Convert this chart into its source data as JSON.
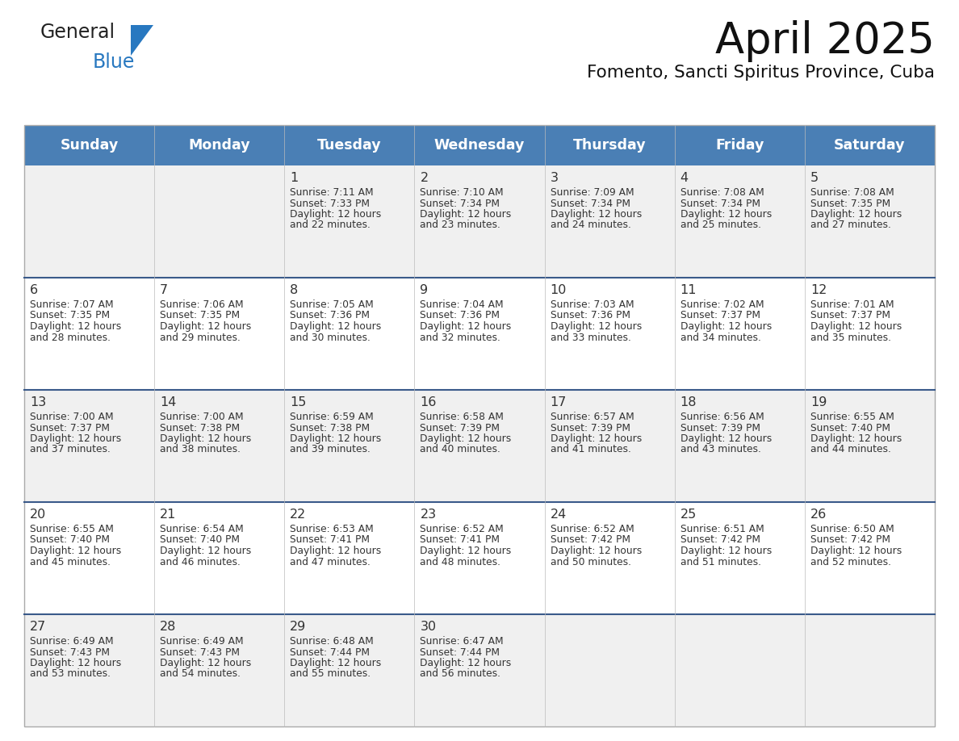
{
  "title": "April 2025",
  "subtitle": "Fomento, Sancti Spiritus Province, Cuba",
  "header_color": "#4a7fb5",
  "header_text_color": "#ffffff",
  "cell_bg_even": "#f0f0f0",
  "cell_bg_odd": "#ffffff",
  "row_divider_color": "#3a5a8a",
  "day_headers": [
    "Sunday",
    "Monday",
    "Tuesday",
    "Wednesday",
    "Thursday",
    "Friday",
    "Saturday"
  ],
  "days": [
    {
      "date": 1,
      "col": 2,
      "row": 0,
      "sunrise": "7:11 AM",
      "sunset": "7:33 PM",
      "daylight_minutes": "22"
    },
    {
      "date": 2,
      "col": 3,
      "row": 0,
      "sunrise": "7:10 AM",
      "sunset": "7:34 PM",
      "daylight_minutes": "23"
    },
    {
      "date": 3,
      "col": 4,
      "row": 0,
      "sunrise": "7:09 AM",
      "sunset": "7:34 PM",
      "daylight_minutes": "24"
    },
    {
      "date": 4,
      "col": 5,
      "row": 0,
      "sunrise": "7:08 AM",
      "sunset": "7:34 PM",
      "daylight_minutes": "25"
    },
    {
      "date": 5,
      "col": 6,
      "row": 0,
      "sunrise": "7:08 AM",
      "sunset": "7:35 PM",
      "daylight_minutes": "27"
    },
    {
      "date": 6,
      "col": 0,
      "row": 1,
      "sunrise": "7:07 AM",
      "sunset": "7:35 PM",
      "daylight_minutes": "28"
    },
    {
      "date": 7,
      "col": 1,
      "row": 1,
      "sunrise": "7:06 AM",
      "sunset": "7:35 PM",
      "daylight_minutes": "29"
    },
    {
      "date": 8,
      "col": 2,
      "row": 1,
      "sunrise": "7:05 AM",
      "sunset": "7:36 PM",
      "daylight_minutes": "30"
    },
    {
      "date": 9,
      "col": 3,
      "row": 1,
      "sunrise": "7:04 AM",
      "sunset": "7:36 PM",
      "daylight_minutes": "32"
    },
    {
      "date": 10,
      "col": 4,
      "row": 1,
      "sunrise": "7:03 AM",
      "sunset": "7:36 PM",
      "daylight_minutes": "33"
    },
    {
      "date": 11,
      "col": 5,
      "row": 1,
      "sunrise": "7:02 AM",
      "sunset": "7:37 PM",
      "daylight_minutes": "34"
    },
    {
      "date": 12,
      "col": 6,
      "row": 1,
      "sunrise": "7:01 AM",
      "sunset": "7:37 PM",
      "daylight_minutes": "35"
    },
    {
      "date": 13,
      "col": 0,
      "row": 2,
      "sunrise": "7:00 AM",
      "sunset": "7:37 PM",
      "daylight_minutes": "37"
    },
    {
      "date": 14,
      "col": 1,
      "row": 2,
      "sunrise": "7:00 AM",
      "sunset": "7:38 PM",
      "daylight_minutes": "38"
    },
    {
      "date": 15,
      "col": 2,
      "row": 2,
      "sunrise": "6:59 AM",
      "sunset": "7:38 PM",
      "daylight_minutes": "39"
    },
    {
      "date": 16,
      "col": 3,
      "row": 2,
      "sunrise": "6:58 AM",
      "sunset": "7:39 PM",
      "daylight_minutes": "40"
    },
    {
      "date": 17,
      "col": 4,
      "row": 2,
      "sunrise": "6:57 AM",
      "sunset": "7:39 PM",
      "daylight_minutes": "41"
    },
    {
      "date": 18,
      "col": 5,
      "row": 2,
      "sunrise": "6:56 AM",
      "sunset": "7:39 PM",
      "daylight_minutes": "43"
    },
    {
      "date": 19,
      "col": 6,
      "row": 2,
      "sunrise": "6:55 AM",
      "sunset": "7:40 PM",
      "daylight_minutes": "44"
    },
    {
      "date": 20,
      "col": 0,
      "row": 3,
      "sunrise": "6:55 AM",
      "sunset": "7:40 PM",
      "daylight_minutes": "45"
    },
    {
      "date": 21,
      "col": 1,
      "row": 3,
      "sunrise": "6:54 AM",
      "sunset": "7:40 PM",
      "daylight_minutes": "46"
    },
    {
      "date": 22,
      "col": 2,
      "row": 3,
      "sunrise": "6:53 AM",
      "sunset": "7:41 PM",
      "daylight_minutes": "47"
    },
    {
      "date": 23,
      "col": 3,
      "row": 3,
      "sunrise": "6:52 AM",
      "sunset": "7:41 PM",
      "daylight_minutes": "48"
    },
    {
      "date": 24,
      "col": 4,
      "row": 3,
      "sunrise": "6:52 AM",
      "sunset": "7:42 PM",
      "daylight_minutes": "50"
    },
    {
      "date": 25,
      "col": 5,
      "row": 3,
      "sunrise": "6:51 AM",
      "sunset": "7:42 PM",
      "daylight_minutes": "51"
    },
    {
      "date": 26,
      "col": 6,
      "row": 3,
      "sunrise": "6:50 AM",
      "sunset": "7:42 PM",
      "daylight_minutes": "52"
    },
    {
      "date": 27,
      "col": 0,
      "row": 4,
      "sunrise": "6:49 AM",
      "sunset": "7:43 PM",
      "daylight_minutes": "53"
    },
    {
      "date": 28,
      "col": 1,
      "row": 4,
      "sunrise": "6:49 AM",
      "sunset": "7:43 PM",
      "daylight_minutes": "54"
    },
    {
      "date": 29,
      "col": 2,
      "row": 4,
      "sunrise": "6:48 AM",
      "sunset": "7:44 PM",
      "daylight_minutes": "55"
    },
    {
      "date": 30,
      "col": 3,
      "row": 4,
      "sunrise": "6:47 AM",
      "sunset": "7:44 PM",
      "daylight_minutes": "56"
    }
  ],
  "num_rows": 5,
  "logo_general_color": "#222222",
  "logo_blue_color": "#2878c0",
  "logo_triangle_color": "#2878c0"
}
